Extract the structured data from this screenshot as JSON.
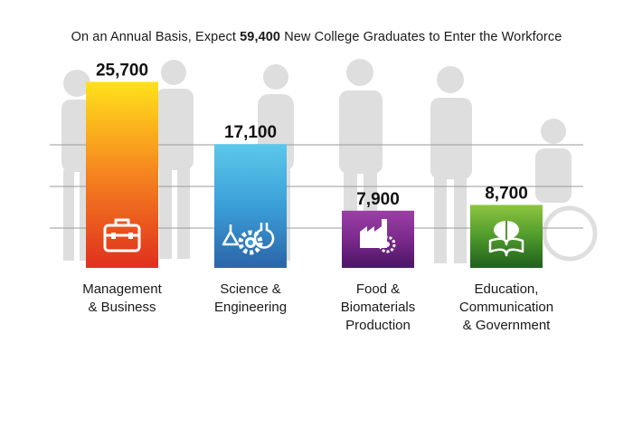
{
  "title": {
    "prefix": "On an Annual Basis, Expect ",
    "highlight": "59,400",
    "suffix": " New College Graduates to Enter the Workforce"
  },
  "chart_data": {
    "type": "bar",
    "categories": [
      "Management\n& Business",
      "Science &\nEngineering",
      "Food &\nBiomaterials\nProduction",
      "Education,\nCommunication\n& Government"
    ],
    "values": [
      25700,
      17100,
      7900,
      8700
    ],
    "value_labels": [
      "25,700",
      "17,100",
      "7,900",
      "8,700"
    ],
    "colors": [
      [
        "#ffe21a",
        "#f5831f",
        "#e0301e"
      ],
      [
        "#5cc8ea",
        "#3a9fd8",
        "#2b64a8"
      ],
      [
        "#9b3fa6",
        "#7b2a8c",
        "#4a1565"
      ],
      [
        "#8cc63f",
        "#4f9a2c",
        "#1e5f1c"
      ]
    ],
    "icons": [
      "briefcase-icon",
      "lab-flasks-gear-icon",
      "factory-gear-icon",
      "brain-book-icon"
    ],
    "ylim": [
      0,
      27000
    ],
    "grid": true,
    "xlabel": "",
    "ylabel": ""
  }
}
